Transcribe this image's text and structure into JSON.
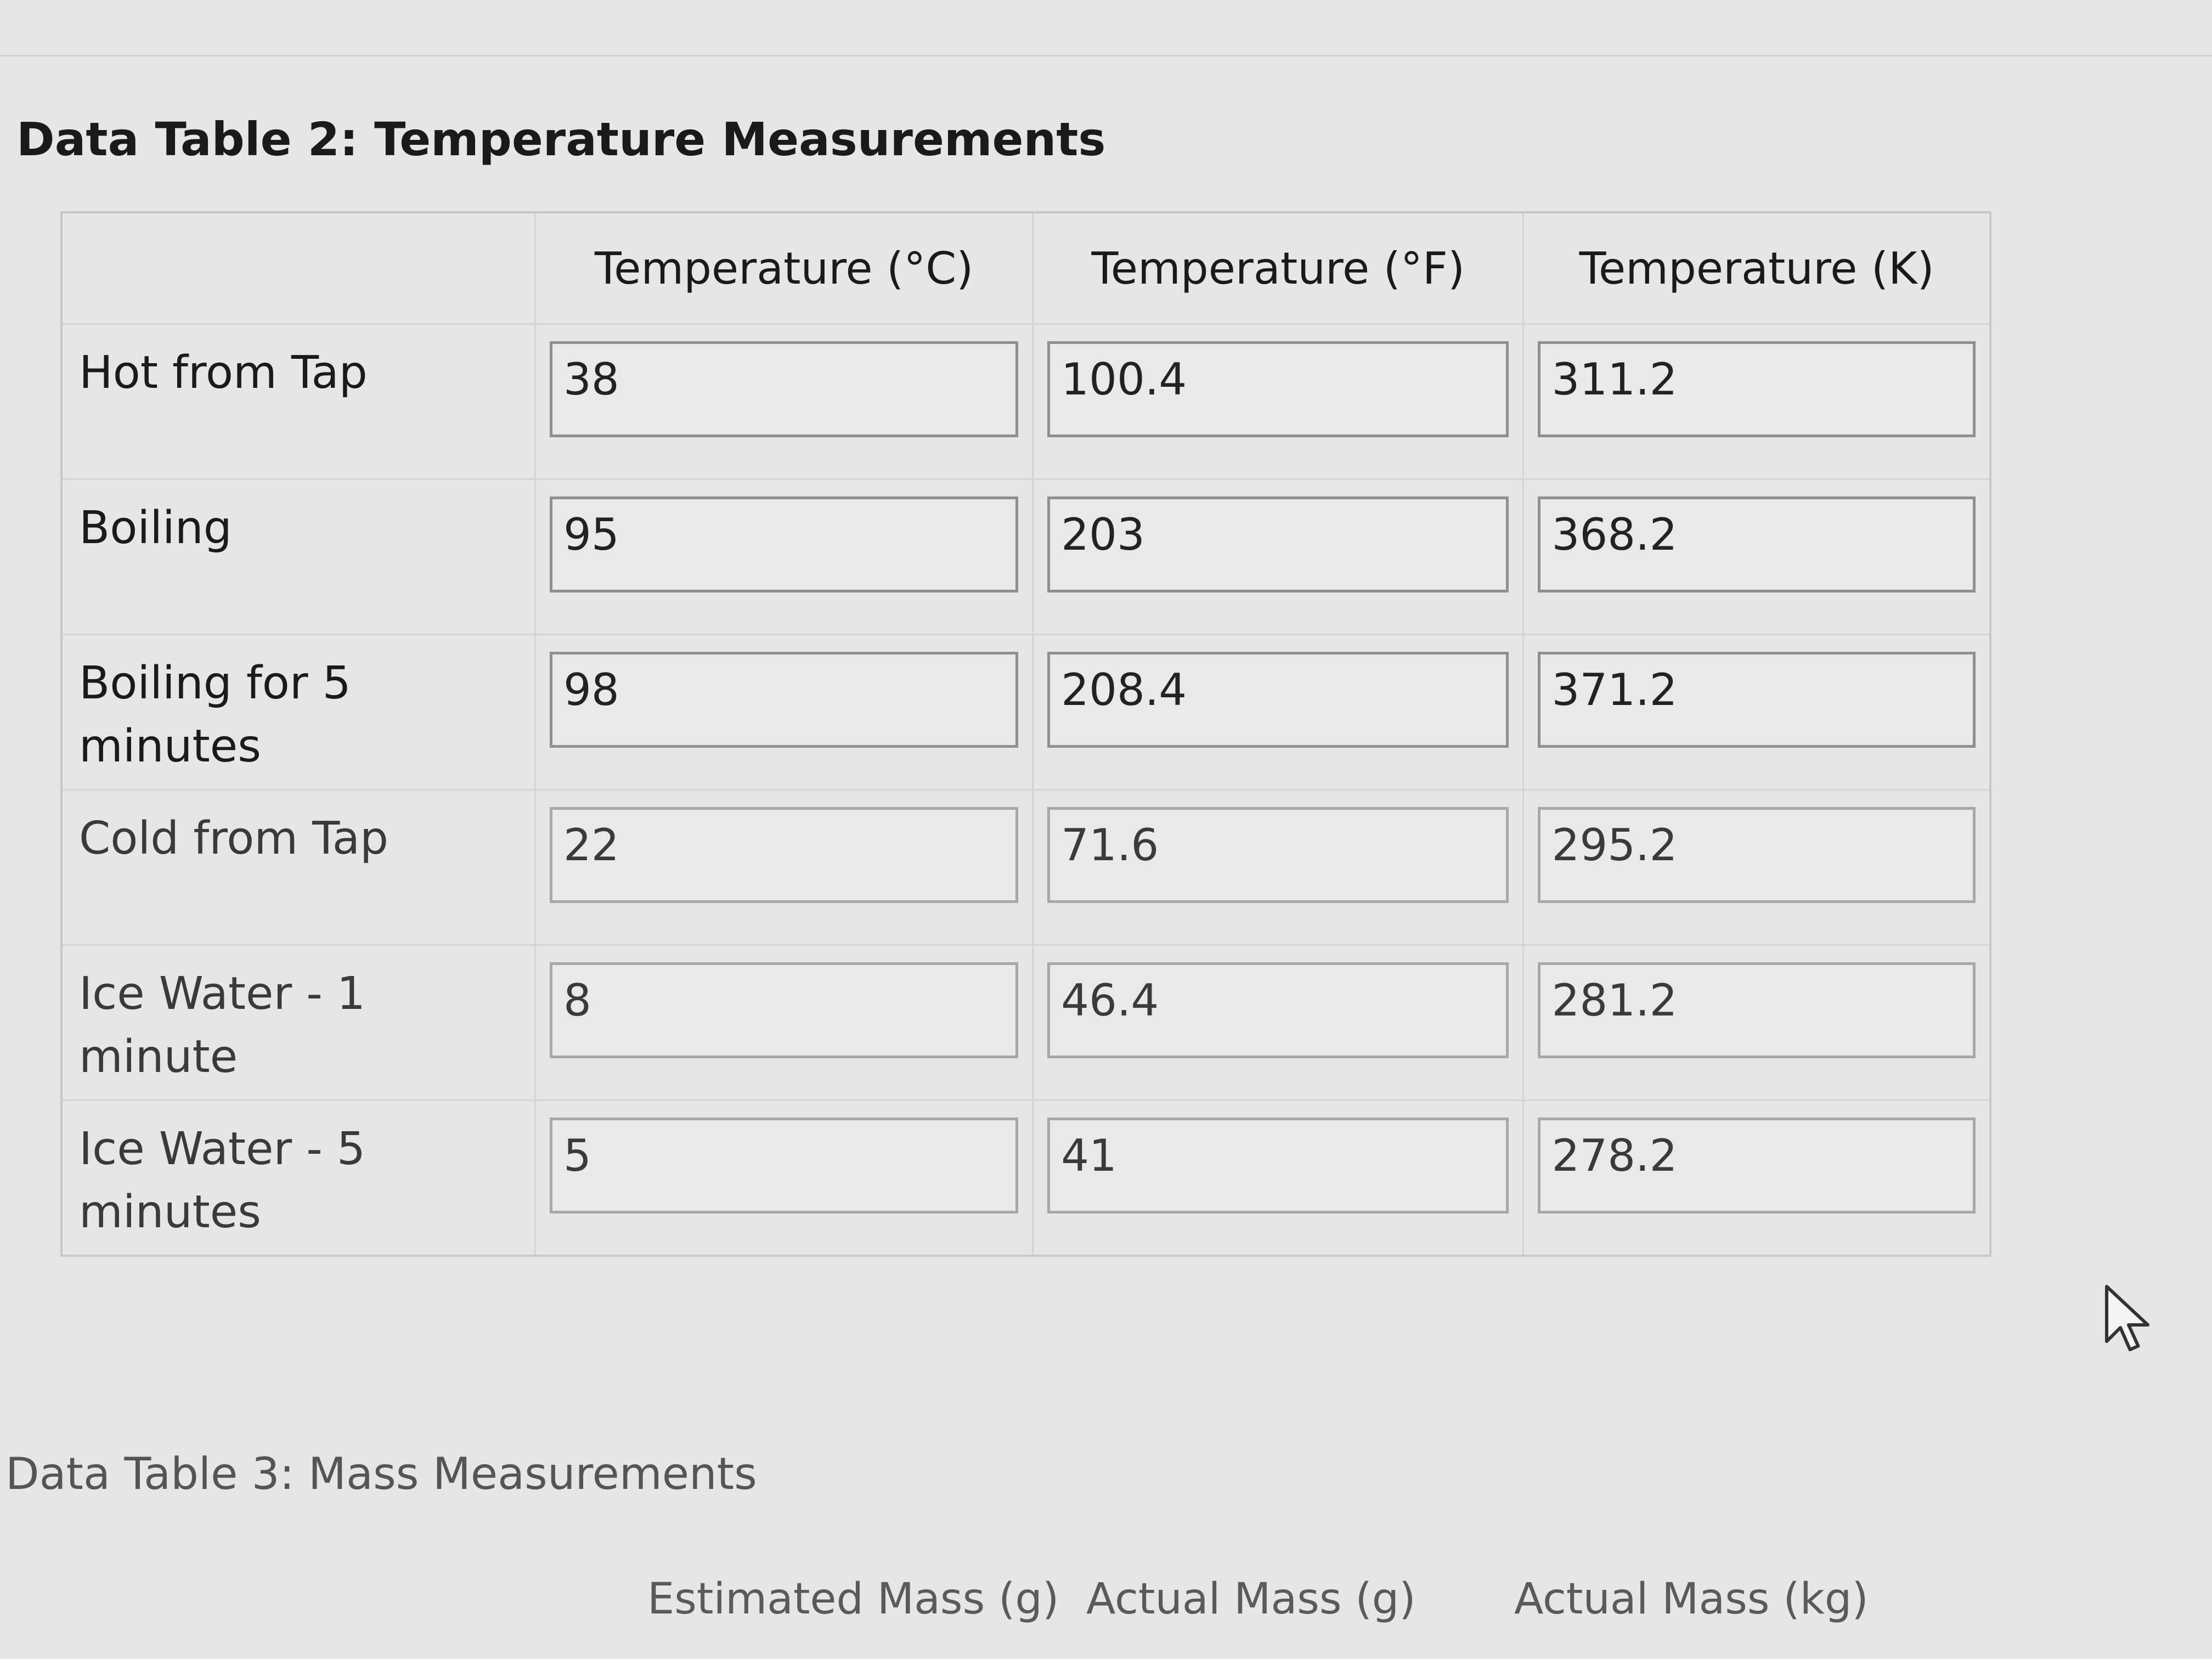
{
  "table2": {
    "title": "Data Table 2: Temperature Measurements",
    "headers": [
      "",
      "Temperature (°C)",
      "Temperature (°F)",
      "Temperature (K)"
    ],
    "rows": [
      {
        "label": "Hot from Tap",
        "c": "38",
        "f": "100.4",
        "k": "311.2"
      },
      {
        "label": "Boiling",
        "c": "95",
        "f": "203",
        "k": "368.2"
      },
      {
        "label": "Boiling for 5 minutes",
        "c": "98",
        "f": "208.4",
        "k": "371.2"
      },
      {
        "label": "Cold from Tap",
        "c": "22",
        "f": "71.6",
        "k": "295.2"
      },
      {
        "label": "Ice Water - 1 minute",
        "c": "8",
        "f": "46.4",
        "k": "281.2"
      },
      {
        "label": "Ice Water - 5 minutes",
        "c": "5",
        "f": "41",
        "k": "278.2"
      }
    ]
  },
  "table3": {
    "title": "Data Table 3: Mass Measurements",
    "headers": [
      "Estimated Mass (g)",
      "Actual Mass (g)",
      "Actual Mass (kg)"
    ]
  },
  "icons": {
    "cursor": "mouse-pointer-icon"
  }
}
